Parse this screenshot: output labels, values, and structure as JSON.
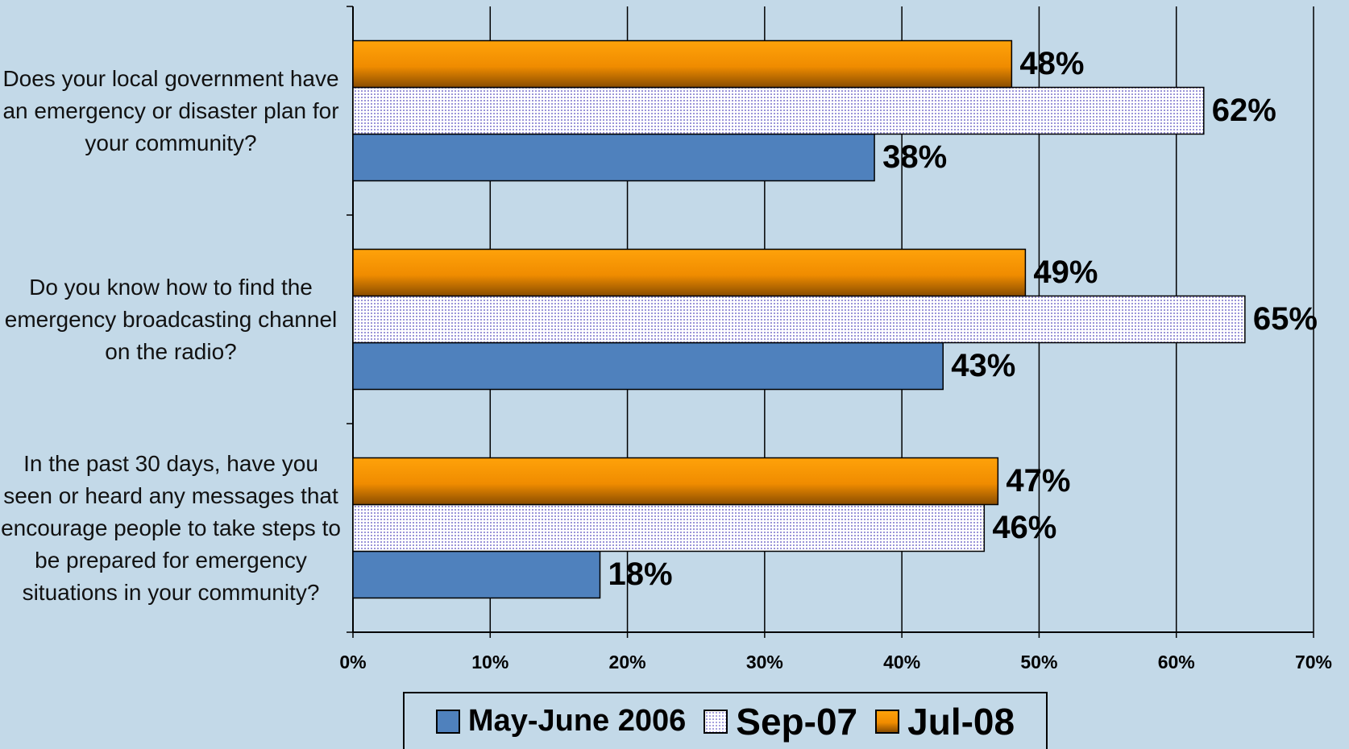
{
  "chart_data": {
    "type": "bar",
    "orientation": "horizontal",
    "categories": [
      "Does your local government have an emergency or disaster plan for your community?",
      "Do you know how to find the emergency broadcasting channel on the radio?",
      "In the past 30 days, have you seen or heard any messages that encourage people to take steps to be prepared for emergency situations in your community?"
    ],
    "series": [
      {
        "name": "May-June 2006",
        "color": "#4f81bd",
        "fill_style": "solid",
        "values": [
          38,
          43,
          18
        ],
        "value_labels": [
          "38%",
          "43%",
          "18%"
        ]
      },
      {
        "name": "Sep-07",
        "color": "#e8e6f7",
        "fill_style": "dots",
        "values": [
          62,
          65,
          46
        ],
        "value_labels": [
          "62%",
          "65%",
          "46%"
        ]
      },
      {
        "name": "Jul-08",
        "color": "#f59a00",
        "fill_style": "gradient",
        "values": [
          48,
          49,
          47
        ],
        "value_labels": [
          "48%",
          "49%",
          "47%"
        ]
      }
    ],
    "xlim": [
      0,
      70
    ],
    "xticks": [
      {
        "value": 0,
        "label": "0%"
      },
      {
        "value": 10,
        "label": "10%"
      },
      {
        "value": 20,
        "label": "20%"
      },
      {
        "value": 30,
        "label": "30%"
      },
      {
        "value": 40,
        "label": "40%"
      },
      {
        "value": 50,
        "label": "50%"
      },
      {
        "value": 60,
        "label": "60%"
      },
      {
        "value": 70,
        "label": "70%"
      }
    ],
    "grid": true,
    "legend": "bottom"
  }
}
